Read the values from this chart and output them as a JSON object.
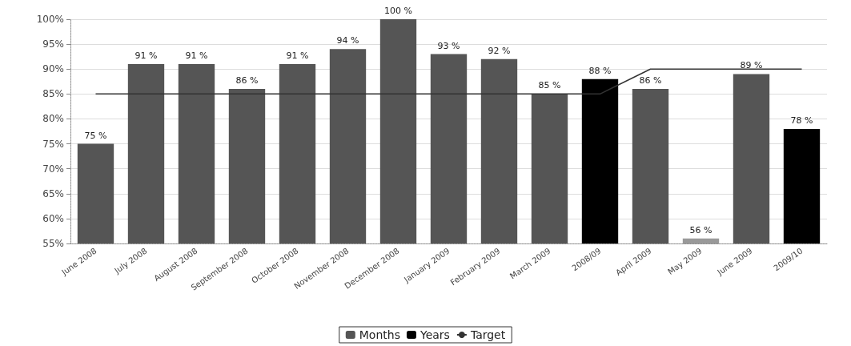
{
  "chart_data": {
    "type": "bar",
    "categories": [
      "June 2008",
      "July 2008",
      "August 2008",
      "September 2008",
      "October 2008",
      "November 2008",
      "December 2008",
      "January 2009",
      "February 2009",
      "March 2009",
      "2008/09",
      "April 2009",
      "May 2009",
      "June 2009",
      "2009/10"
    ],
    "series": [
      {
        "name": "Months",
        "color": "#555555",
        "colors": [
          "#555555",
          "#555555",
          "#555555",
          "#555555",
          "#555555",
          "#555555",
          "#555555",
          "#555555",
          "#555555",
          "#555555",
          "#555555",
          "#555555",
          "#999999",
          "#555555",
          "#555555"
        ],
        "values": [
          75,
          91,
          91,
          86,
          91,
          94,
          100,
          93,
          92,
          85,
          null,
          86,
          56,
          89,
          null
        ],
        "value_labels": [
          "75 %",
          "91 %",
          "91 %",
          "86 %",
          "91 %",
          "94 %",
          "100 %",
          "93 %",
          "92 %",
          "85 %",
          null,
          "86 %",
          "56 %",
          "89 %",
          null
        ]
      },
      {
        "name": "Years",
        "color": "#000000",
        "values": [
          null,
          null,
          null,
          null,
          null,
          null,
          null,
          null,
          null,
          null,
          88,
          null,
          null,
          null,
          78
        ],
        "value_labels": [
          null,
          null,
          null,
          null,
          null,
          null,
          null,
          null,
          null,
          null,
          "88 %",
          null,
          null,
          null,
          "78 %"
        ]
      },
      {
        "name": "Target",
        "type": "line",
        "color": "#333333",
        "marker": "none",
        "line_style": "solid",
        "values": [
          85,
          85,
          85,
          85,
          85,
          85,
          85,
          85,
          85,
          85,
          85,
          90,
          90,
          90,
          90
        ]
      }
    ],
    "ylim": [
      55,
      100
    ],
    "yticks": [
      {
        "value": 55,
        "label": "55%"
      },
      {
        "value": 60,
        "label": "60%"
      },
      {
        "value": 65,
        "label": "65%"
      },
      {
        "value": 70,
        "label": "70%"
      },
      {
        "value": 75,
        "label": "75%"
      },
      {
        "value": 80,
        "label": "80%"
      },
      {
        "value": 85,
        "label": "85%"
      },
      {
        "value": 90,
        "label": "90%"
      },
      {
        "value": 95,
        "label": "95%"
      },
      {
        "value": 100,
        "label": "100%"
      }
    ],
    "grid": "y",
    "legend": "bottom"
  }
}
